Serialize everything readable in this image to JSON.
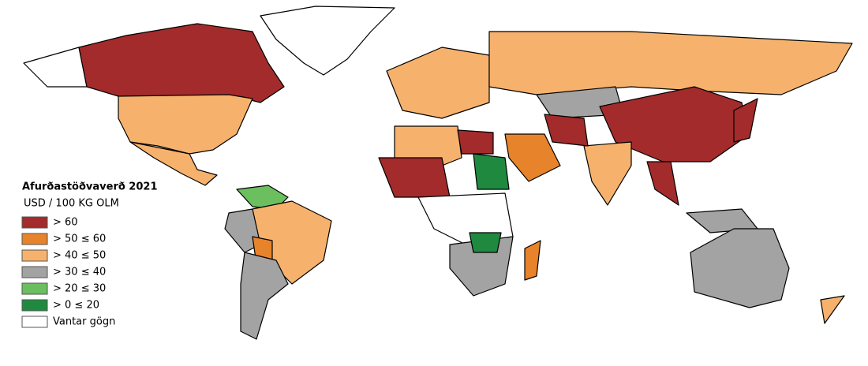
{
  "legend": {
    "title": "Afurðastöðvaverð 2021",
    "subtitle": "USD / 100 KG OLM",
    "items": [
      {
        "label": "> 60",
        "color": "#a32b2b"
      },
      {
        "label": "> 50 ≤  60",
        "color": "#e7832b"
      },
      {
        "label": "> 40 ≤  50",
        "color": "#f6b26d"
      },
      {
        "label": "> 30 ≤  40",
        "color": "#a3a3a3"
      },
      {
        "label": "> 20 ≤  30",
        "color": "#6bbf5f"
      },
      {
        "label": ">  0 ≤  20",
        "color": "#1f8a3f"
      },
      {
        "label": "Vantar gögn",
        "color": "#ffffff"
      }
    ]
  }
}
